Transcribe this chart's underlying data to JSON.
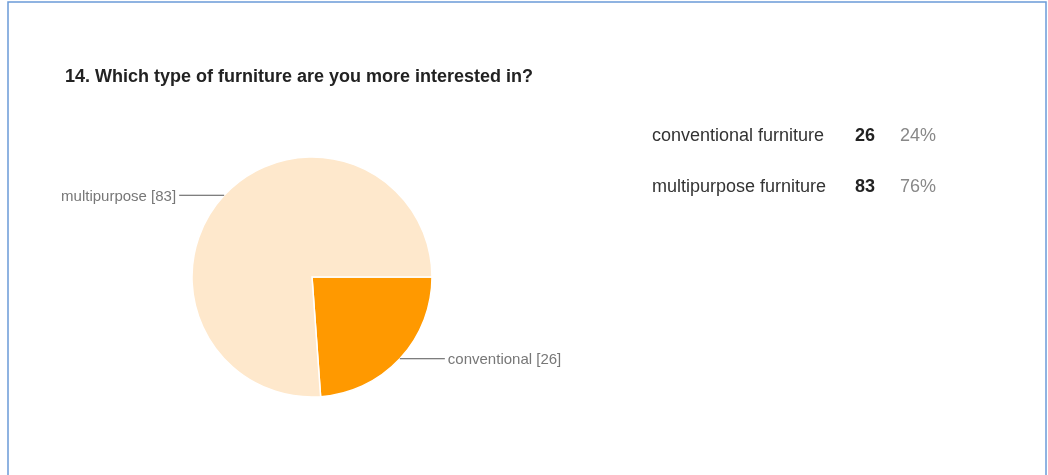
{
  "chart_data": {
    "type": "pie",
    "title": "14. Which type of furniture are you more interested in?",
    "categories": [
      "conventional [26]",
      "multipurpose [83]"
    ],
    "values": [
      26,
      83
    ],
    "colors": [
      "#ff9900",
      "#fee8cc"
    ],
    "annotations": [
      "conventional furniture",
      "26",
      "24%",
      "multipurpose furniture",
      "83",
      "76%"
    ]
  }
}
